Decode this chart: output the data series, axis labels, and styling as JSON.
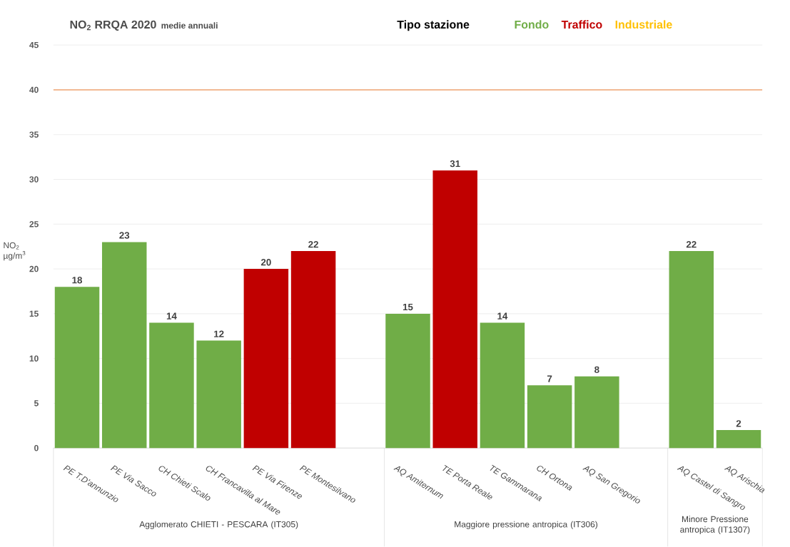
{
  "chart_data": {
    "type": "bar",
    "title": "NO$_{2}$ RRQA  2020",
    "subtitle": "medie annuali",
    "ylabel": "NO$_{2}$ µg/m$^{3}$",
    "legend_title": "Tipo stazione",
    "categories": [
      "PE T.D'annunzio",
      "PE Via Sacco",
      "CH Chieti Scalo",
      "CH Francavilla al Mare",
      "PE Via Firenze",
      "PE Montesilvano",
      null,
      "AQ Amiternum",
      "TE Porta Reale",
      "TE Gammarana",
      "CH Ortona",
      "AQ San Gregorio",
      null,
      "AQ Castel di Sangro",
      "AQ Arischia"
    ],
    "series": [
      {
        "name": "Fondo",
        "color": "#70ad47",
        "values": [
          18,
          23,
          14,
          12,
          null,
          null,
          null,
          15,
          null,
          14,
          7,
          8,
          null,
          22,
          2
        ]
      },
      {
        "name": "Traffico",
        "color": "#c00000",
        "values": [
          null,
          null,
          null,
          null,
          20,
          22,
          null,
          null,
          31,
          null,
          null,
          null,
          null,
          null,
          null
        ]
      },
      {
        "name": "Industriale",
        "color": "#ffc000",
        "values": [
          null,
          null,
          null,
          null,
          null,
          null,
          null,
          null,
          null,
          null,
          null,
          null,
          null,
          null,
          null
        ]
      }
    ],
    "ylim": [
      0,
      45
    ],
    "yticks": [
      0,
      5,
      10,
      15,
      20,
      25,
      30,
      35,
      40,
      45
    ],
    "grid": "y",
    "data_labels": true,
    "legend": "top right",
    "ref_lines": [
      {
        "axis": "y",
        "value": 40,
        "color": "#ed7d31"
      }
    ],
    "annotations": [
      "Agglomerato CHIETI - PESCARA (IT305)",
      "Maggiore pressione antropica (IT306)",
      "Minore Pressione antropica (IT1307)"
    ]
  }
}
